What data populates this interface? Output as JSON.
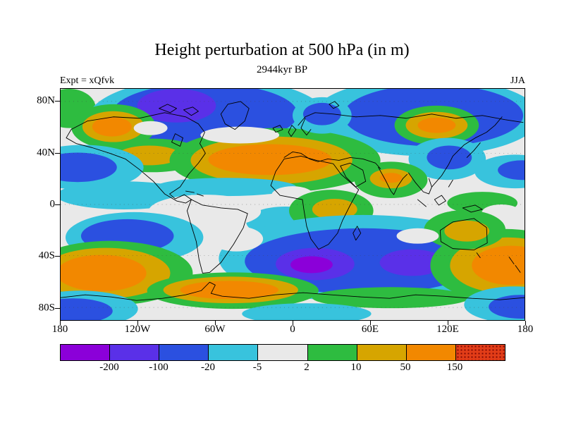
{
  "chart_data": {
    "type": "heatmap",
    "title": "Height perturbation at 500 hPa (in m)",
    "subtitle": "2944kyr BP",
    "experiment_label": "Expt = xQfvk",
    "season_label": "JJA",
    "projection": "equirectangular world map, longitude 180W to 180E, latitude 90S to 90N",
    "x_axis": {
      "ticks": [
        "180",
        "120W",
        "60W",
        "0",
        "60E",
        "120E",
        "180"
      ]
    },
    "y_axis": {
      "ticks": [
        {
          "label": "80N",
          "lat": 80
        },
        {
          "label": "40N",
          "lat": 40
        },
        {
          "label": "0",
          "lat": 0
        },
        {
          "label": "40S",
          "lat": -40
        },
        {
          "label": "80S",
          "lat": -80
        }
      ]
    },
    "colorbar": {
      "bin_labels": [
        "-200",
        "-100",
        "-20",
        "-5",
        "2",
        "10",
        "50",
        "150"
      ],
      "bin_colors": [
        "#8b00d9",
        "#5a30e8",
        "#2b50e0",
        "#38c3dd",
        "#e9e9e9",
        "#2ebc40",
        "#d6a500",
        "#f28800",
        "#e23d18"
      ],
      "bin_ranges": [
        "< -200",
        "-200 to -100",
        "-100 to -20",
        "-20 to -5",
        "-5 to 2",
        "2 to 10",
        "10 to 50",
        "50 to 150",
        "> 150"
      ],
      "stippled_last_bin": true,
      "units": "m"
    },
    "map_features": [
      {
        "region": "Arctic / Greenland-North Atlantic sector",
        "sign": "strong negative",
        "approx_value": "-100 to -200"
      },
      {
        "region": "Alaska",
        "sign": "positive",
        "approx_value": "50 to 150"
      },
      {
        "region": "North Atlantic / Europe / North Africa subtropics",
        "sign": "positive",
        "approx_value": "50 to 150"
      },
      {
        "region": "Eastern Siberia (inside Arctic negative)",
        "sign": "positive",
        "approx_value": "50 to 150"
      },
      {
        "region": "East Asia coast and North Pacific edges",
        "sign": "negative",
        "approx_value": "-20 to -100"
      },
      {
        "region": "Southern Ocean, South Atlantic & Indian sectors ~50S",
        "sign": "strong negative",
        "approx_value": "-100 to -200 and below"
      },
      {
        "region": "Southeast Pacific ~55S",
        "sign": "positive",
        "approx_value": "50 to 150"
      },
      {
        "region": "South of Australia / New Zealand ~50S",
        "sign": "positive",
        "approx_value": "50 to 150"
      },
      {
        "region": "Antarctic Peninsula / Weddell Sea ~65S",
        "sign": "positive",
        "approx_value": "50 to 150"
      },
      {
        "region": "Tropics (broad band)",
        "sign": "near zero",
        "approx_value": "-5 to 2"
      }
    ]
  }
}
